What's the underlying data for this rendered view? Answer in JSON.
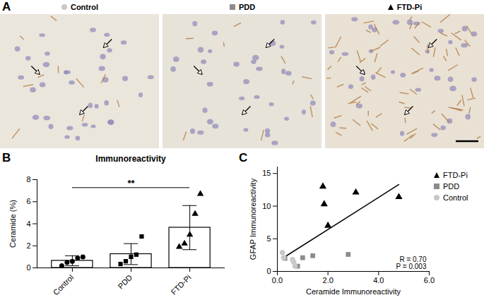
{
  "chart_data": [
    {
      "type": "image_panels",
      "label": "A",
      "panels": [
        {
          "name": "Control",
          "marker": "circle",
          "color": "#c8c8c8"
        },
        {
          "name": "PDD",
          "marker": "square",
          "color": "#8c8c8c"
        },
        {
          "name": "FTD-Pi",
          "marker": "triangle",
          "color": "#000000"
        }
      ]
    },
    {
      "type": "bar",
      "label": "B",
      "title": "Immunoreactivity",
      "y_label": "Ceramide (%)",
      "categories": [
        "Control",
        "PDD",
        "FTD-Pi"
      ],
      "values": [
        0.65,
        1.25,
        3.65
      ],
      "error": [
        0.45,
        0.95,
        2.0
      ],
      "color": "#ffffff",
      "points": [
        {
          "name": "Control",
          "marker": "circle",
          "color": "#000000",
          "values": [
            0.2,
            0.5,
            0.6,
            0.9,
            1.0
          ]
        },
        {
          "name": "PDD",
          "marker": "square",
          "color": "#000000",
          "values": [
            0.35,
            0.6,
            1.0,
            1.2,
            2.85
          ]
        },
        {
          "name": "FTD-Pi",
          "marker": "triangle",
          "color": "#000000",
          "values": [
            1.9,
            2.2,
            3.0,
            4.9,
            6.7
          ]
        }
      ],
      "annotations": [
        {
          "text": "**",
          "from": "Control",
          "to": "FTD-Pi"
        }
      ],
      "ylim": [
        0,
        8
      ],
      "yticks": [
        0,
        2,
        4,
        6,
        8
      ]
    },
    {
      "type": "scatter",
      "label": "C",
      "x_label": "Ceramide Immunoreactivity",
      "y_label": "GFAP Immunoreactivity",
      "series": [
        {
          "name": "FTD-Pi",
          "color": "#000000",
          "marker": "triangle",
          "x": [
            1.8,
            1.85,
            2.0,
            3.1,
            4.8
          ],
          "y": [
            13.0,
            10.3,
            7.0,
            12.1,
            11.4
          ]
        },
        {
          "name": "PDD",
          "color": "#8c8c8c",
          "marker": "square",
          "x": [
            0.3,
            0.8,
            1.0,
            1.4,
            2.8
          ],
          "y": [
            2.0,
            0.8,
            2.1,
            2.4,
            2.6
          ]
        },
        {
          "name": "Control",
          "color": "#c8c8c8",
          "marker": "circle",
          "x": [
            0.2,
            0.25,
            0.6,
            0.65,
            0.7
          ],
          "y": [
            2.9,
            2.1,
            1.8,
            1.4,
            0.8
          ]
        }
      ],
      "fit": {
        "x": [
          0.2,
          4.8
        ],
        "y": [
          2.0,
          13.3
        ]
      },
      "annotations": [
        "R = 0.70",
        "P = 0.003"
      ],
      "xlim": [
        0,
        6
      ],
      "xticks": [
        0,
        2,
        4,
        6
      ],
      "ylim": [
        0,
        16
      ],
      "yticks": [
        0,
        5,
        10,
        15
      ],
      "legend": "right"
    }
  ]
}
